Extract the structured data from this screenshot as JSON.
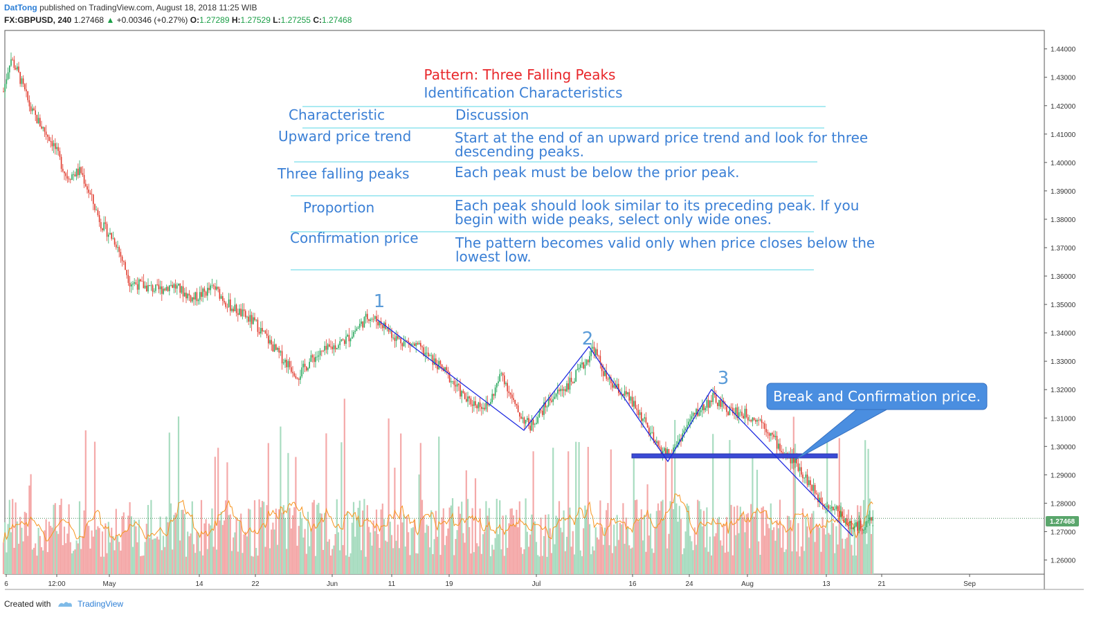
{
  "header": {
    "author": "DatTong",
    "published": " published on TradingView.com, August 18, 2018 11:25 WIB",
    "symbol": "FX:GBPUSD, 240",
    "last": "1.27468",
    "change": "+0.00346 (+0.27%)",
    "o_label": "O:",
    "o_value": "1.27289",
    "h_label": "H:",
    "h_value": "1.27529",
    "l_label": "L:",
    "l_value": "1.27255",
    "c_label": "C:",
    "c_value": "1.27468"
  },
  "footer": {
    "created_with": "Created with",
    "brand": "TradingView"
  },
  "annotation_table": {
    "title": "Pattern: Three Falling Peaks",
    "subtitle": "Identification Characteristics",
    "col1": "Characteristic",
    "col2": "Discussion",
    "rows": [
      {
        "characteristic": "Upward price trend",
        "discussion": [
          "Start at the end of an upward price trend and look for three",
          "descending peaks."
        ]
      },
      {
        "characteristic": "Three falling peaks",
        "discussion": [
          "Each peak must be below the prior peak."
        ]
      },
      {
        "characteristic": "Proportion",
        "discussion": [
          "Each peak should look similar to its preceding peak. If you",
          "begin with wide peaks, select only wide ones."
        ]
      },
      {
        "characteristic": "Confirmation price",
        "discussion": [
          "The pattern becomes valid only when price closes below the",
          "lowest low."
        ]
      }
    ]
  },
  "chart_data": {
    "type": "candlestick",
    "symbol": "FX:GBPUSD",
    "interval": "240",
    "ylim": [
      1.255,
      1.4465
    ],
    "y_ticks": [
      "1.44000",
      "1.43000",
      "1.42000",
      "1.41000",
      "1.40000",
      "1.39000",
      "1.38000",
      "1.37000",
      "1.36000",
      "1.35000",
      "1.34000",
      "1.33000",
      "1.32000",
      "1.31000",
      "1.30000",
      "1.29000",
      "1.28000",
      "1.27000",
      "1.26000"
    ],
    "x_ticks": [
      "6",
      "12:00",
      "May",
      "14",
      "22",
      "Jun",
      "11",
      "19",
      "Jul",
      "16",
      "24",
      "Aug",
      "13",
      "21",
      "Sep"
    ],
    "last_price_label": "1.27468",
    "last_price": 1.27468,
    "price_path": [
      [
        "2018-04-16",
        1.425
      ],
      [
        "2018-04-17",
        1.437
      ],
      [
        "2018-04-18",
        1.432
      ],
      [
        "2018-04-20",
        1.418
      ],
      [
        "2018-04-23",
        1.407
      ],
      [
        "2018-04-25",
        1.395
      ],
      [
        "2018-04-27",
        1.397
      ],
      [
        "2018-04-30",
        1.378
      ],
      [
        "2018-05-02",
        1.372
      ],
      [
        "2018-05-04",
        1.358
      ],
      [
        "2018-05-08",
        1.355
      ],
      [
        "2018-05-10",
        1.357
      ],
      [
        "2018-05-13",
        1.352
      ],
      [
        "2018-05-16",
        1.356
      ],
      [
        "2018-05-18",
        1.35
      ],
      [
        "2018-05-22",
        1.343
      ],
      [
        "2018-05-25",
        1.333
      ],
      [
        "2018-05-28",
        1.325
      ],
      [
        "2018-05-30",
        1.331
      ],
      [
        "2018-06-04",
        1.338
      ],
      [
        "2018-06-07",
        1.346
      ],
      [
        "2018-06-09",
        1.343
      ],
      [
        "2018-06-11",
        1.338
      ],
      [
        "2018-06-14",
        1.335
      ],
      [
        "2018-06-18",
        1.326
      ],
      [
        "2018-06-21",
        1.316
      ],
      [
        "2018-06-24",
        1.314
      ],
      [
        "2018-06-26",
        1.326
      ],
      [
        "2018-06-28",
        1.313
      ],
      [
        "2018-06-30",
        1.307
      ],
      [
        "2018-07-03",
        1.317
      ],
      [
        "2018-07-06",
        1.323
      ],
      [
        "2018-07-08",
        1.33
      ],
      [
        "2018-07-09",
        1.335
      ],
      [
        "2018-07-11",
        1.323
      ],
      [
        "2018-07-14",
        1.317
      ],
      [
        "2018-07-16",
        1.31
      ],
      [
        "2018-07-18",
        1.3
      ],
      [
        "2018-07-20",
        1.297
      ],
      [
        "2018-07-23",
        1.31
      ],
      [
        "2018-07-26",
        1.317
      ],
      [
        "2018-07-28",
        1.313
      ],
      [
        "2018-07-31",
        1.311
      ],
      [
        "2018-08-02",
        1.309
      ],
      [
        "2018-08-05",
        1.298
      ],
      [
        "2018-08-07",
        1.294
      ],
      [
        "2018-08-10",
        1.282
      ],
      [
        "2018-08-13",
        1.277
      ],
      [
        "2018-08-15",
        1.271
      ],
      [
        "2018-08-17",
        1.273
      ],
      [
        "2018-08-18",
        1.2747
      ]
    ],
    "volume_moving_average": true,
    "annotations": {
      "peak_labels": [
        "1",
        "2",
        "3"
      ],
      "peak_prices": [
        1.3475,
        1.3365,
        1.3215
      ],
      "confirmation_level": 1.298,
      "callout": "Break and Confirmation price."
    }
  },
  "colors": {
    "up_candle": "#26a65b",
    "down_candle": "#e0392b",
    "volume_up": "#a8dcc0",
    "volume_down": "#f4a9a9",
    "volume_ma": "#f7941d",
    "trend_line": "#1f2ae0",
    "confirmation_band": "#3a4ad6",
    "callout_bg": "#4a8ee0",
    "table_text": "#3a7fd5",
    "table_title": "#e8262a",
    "table_rule": "#56d6e6",
    "peak_label": "#5a9bd8",
    "last_price_badge": "#5aa66c"
  }
}
